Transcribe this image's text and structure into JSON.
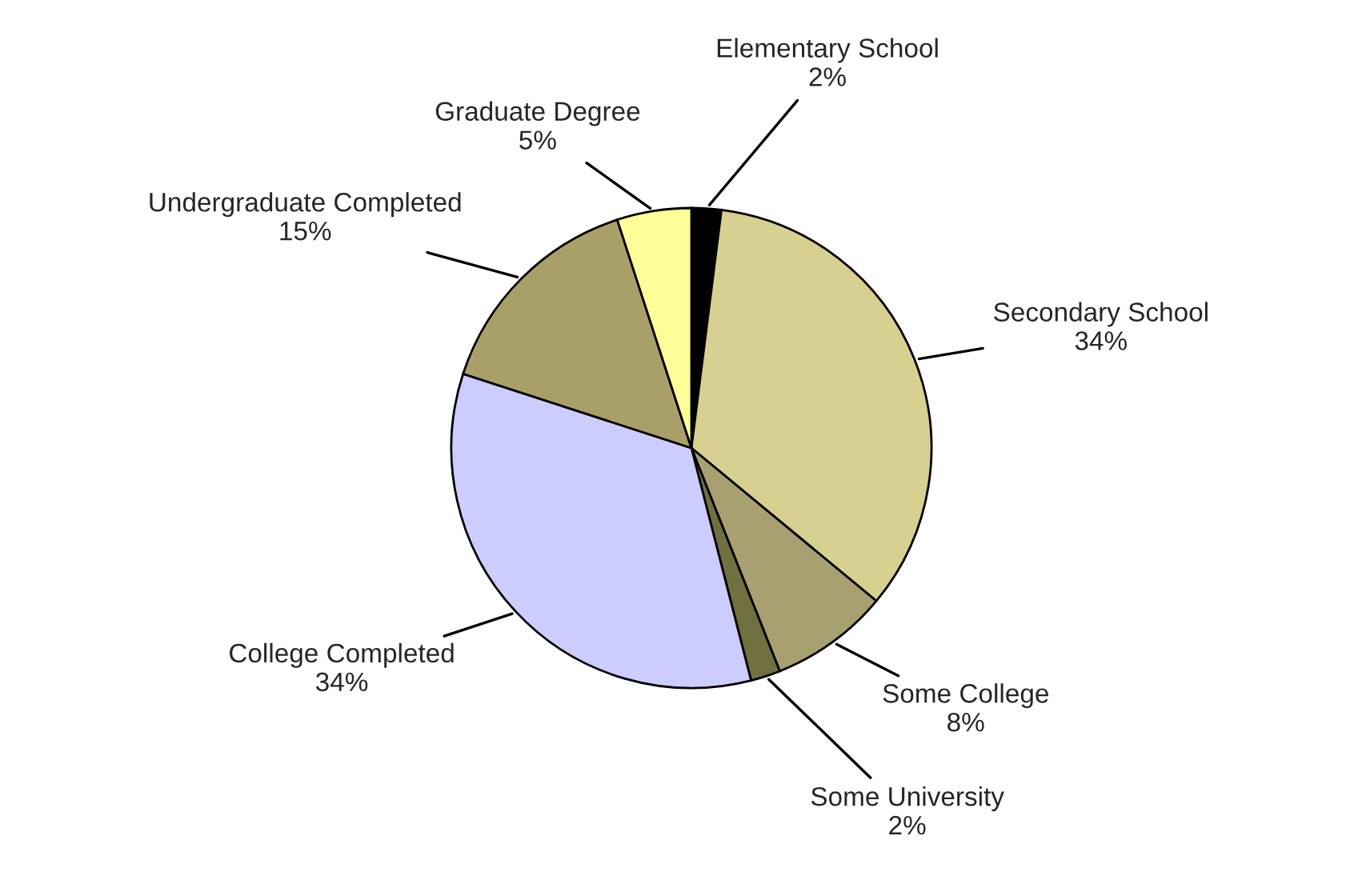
{
  "chart_data": {
    "type": "pie",
    "categories": [
      "Elementary School",
      "Secondary School",
      "Some College",
      "Some University",
      "College Completed",
      "Undergraduate Completed",
      "Graduate Degree"
    ],
    "values": [
      2,
      34,
      8,
      2,
      34,
      15,
      5
    ],
    "value_labels": [
      "2%",
      "34%",
      "8%",
      "2%",
      "34%",
      "15%",
      "5%"
    ],
    "colors": [
      "#000000",
      "#d8d090",
      "#a8a070",
      "#707040",
      "#ccccff",
      "#a8a068",
      "#ffff99"
    ],
    "legend": false
  }
}
